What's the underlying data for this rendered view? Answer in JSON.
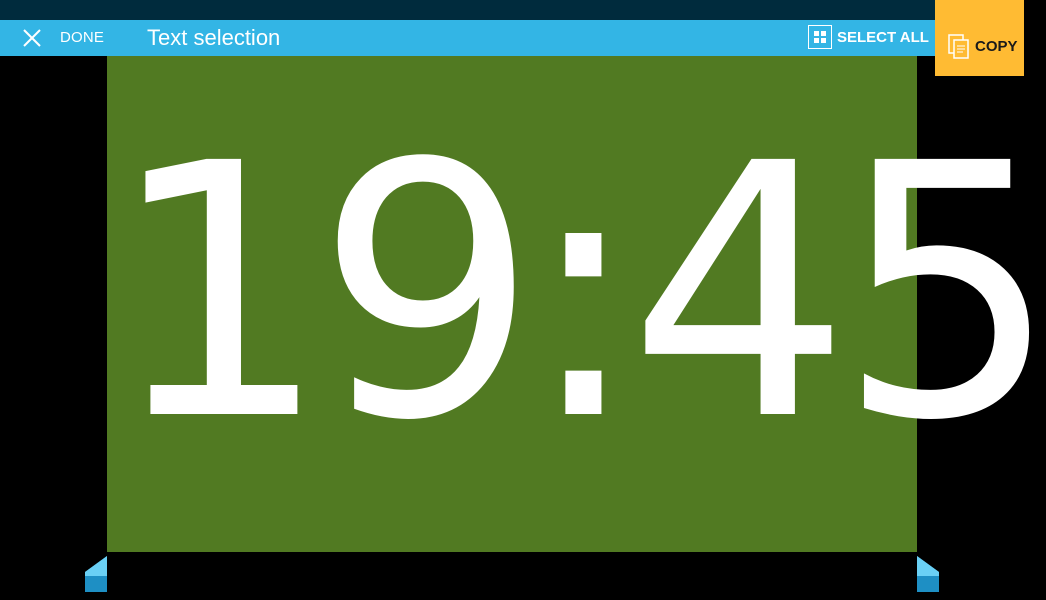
{
  "action_bar": {
    "done_label": "DONE",
    "title": "Text selection",
    "select_all_label": "SELECT ALL",
    "copy_label": "COPY",
    "icons": {
      "done": "close-x-icon",
      "select_all": "select-all-grid-icon",
      "copy": "copy-pages-icon"
    }
  },
  "content": {
    "clock_text": "19:45"
  },
  "colors": {
    "status_bar": "#002b3d",
    "action_bar": "#33b5e5",
    "copy_button": "#ffbb33",
    "clock_background": "#517a22",
    "clock_text": "#ffffff",
    "selection_handle": "#33b5e5"
  }
}
